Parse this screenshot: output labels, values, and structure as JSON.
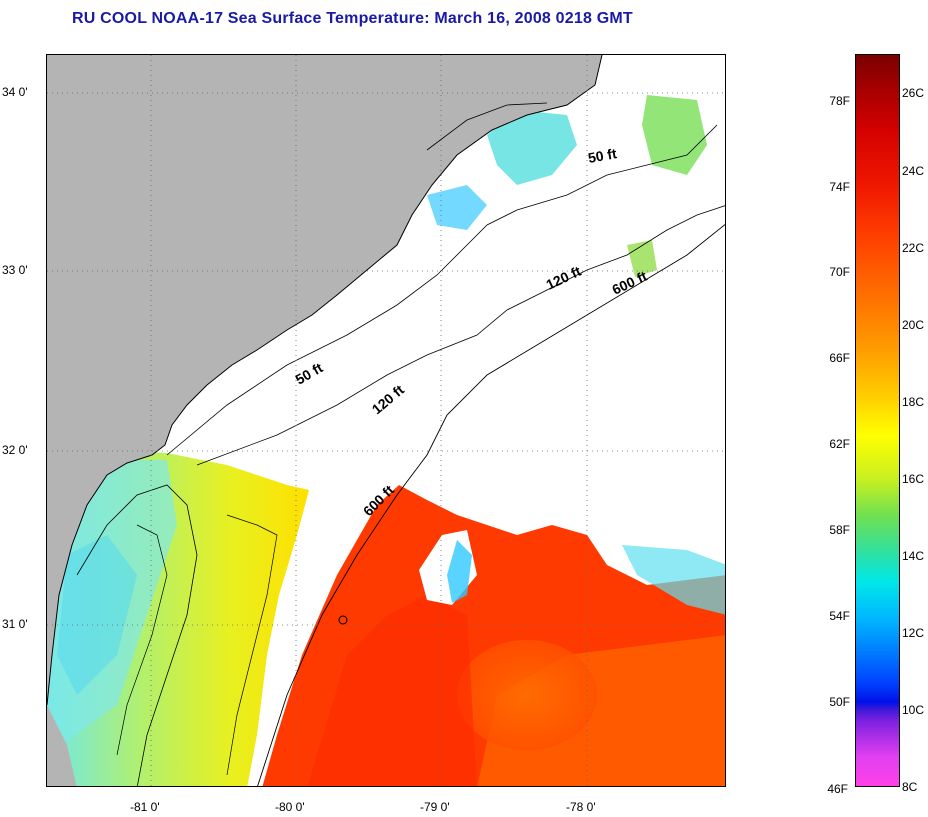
{
  "title": "RU COOL  NOAA-17  Sea Surface Temperature:  March 16, 2008 0218 GMT",
  "lat_labels": [
    "34 0'",
    "33 0'",
    "32 0'",
    "31 0'"
  ],
  "lon_labels": [
    "-81 0'",
    "-80 0'",
    "-79 0'",
    "-78 0'"
  ],
  "contour_labels": [
    "50 ft",
    "120 ft",
    "600 ft",
    "50 ft",
    "120 ft",
    "600 ft"
  ],
  "colorbar": {
    "fahrenheit": [
      "78F",
      "74F",
      "70F",
      "66F",
      "62F",
      "58F",
      "54F",
      "50F",
      "46F"
    ],
    "celsius": [
      "26C",
      "24C",
      "22C",
      "20C",
      "18C",
      "16C",
      "14C",
      "12C",
      "10C",
      "8C"
    ]
  },
  "colors": {
    "land": "#b4b4b4",
    "title": "#1a1aa6",
    "warm": "#ff3000",
    "gulf": "#ff5a00",
    "cool": "#ffe600",
    "coolest": "#80e8ff"
  }
}
